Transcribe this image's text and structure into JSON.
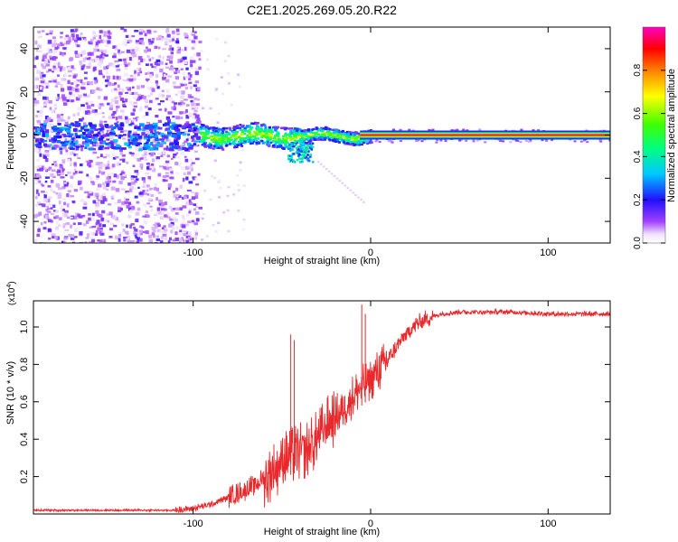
{
  "title": "C2E1.2025.269.05.20.R22",
  "chart_data": [
    {
      "type": "heatmap",
      "name": "spectrogram",
      "xlabel": "Height of straight line (km)",
      "ylabel": "Frequency (Hz)",
      "xlim": [
        -190,
        135
      ],
      "ylim": [
        -50,
        50
      ],
      "xticks": [
        -100,
        0,
        100
      ],
      "yticks": [
        -40,
        -20,
        0,
        20,
        40
      ],
      "x_tick_labels": [
        "-100",
        "0",
        "100"
      ],
      "y_tick_labels": [
        "-40",
        "-20",
        "0",
        "20",
        "40"
      ],
      "noise_region_x": [
        -190,
        -97
      ],
      "central_line_hz": 0,
      "colorbar": {
        "label": "Normalized spectral amplitude",
        "range": [
          0,
          1
        ],
        "ticks": [
          0.0,
          0.2,
          0.4,
          0.6,
          0.8
        ],
        "tick_labels": [
          "0.0",
          "0.2",
          "0.4",
          "0.6",
          "0.8"
        ],
        "colors": [
          "#ffffff",
          "#7f00ff",
          "#0000ff",
          "#00ffff",
          "#00ff00",
          "#ffff00",
          "#ff0000",
          "#ff00ff"
        ]
      }
    },
    {
      "type": "line",
      "name": "snr",
      "xlabel": "Height of straight line (km)",
      "ylabel": "SNR (10 * v/v)",
      "scale_note": "(x10",
      "scale_exp": "4",
      "scale_close": ")",
      "xlim": [
        -190,
        135
      ],
      "ylim": [
        0,
        1.14
      ],
      "xticks": [
        -100,
        0,
        100
      ],
      "yticks": [
        0.2,
        0.4,
        0.6,
        0.8,
        1.0
      ],
      "x_tick_labels": [
        "-100",
        "0",
        "100"
      ],
      "y_tick_labels": [
        "0.2",
        "0.4",
        "0.6",
        "0.8",
        "1.0"
      ],
      "color": "#e8282a",
      "series": [
        {
          "name": "SNR",
          "x": [
            -190,
            -160,
            -130,
            -110,
            -100,
            -90,
            -80,
            -70,
            -60,
            -55,
            -50,
            -45,
            -40,
            -35,
            -30,
            -25,
            -20,
            -15,
            -10,
            -5,
            0,
            5,
            10,
            15,
            20,
            25,
            30,
            40,
            50,
            60,
            80,
            100,
            120,
            135
          ],
          "y": [
            0.02,
            0.02,
            0.02,
            0.02,
            0.03,
            0.05,
            0.09,
            0.13,
            0.19,
            0.23,
            0.28,
            0.31,
            0.33,
            0.35,
            0.4,
            0.47,
            0.52,
            0.57,
            0.63,
            0.68,
            0.72,
            0.77,
            0.83,
            0.9,
            0.96,
            1.01,
            1.04,
            1.07,
            1.08,
            1.08,
            1.08,
            1.07,
            1.07,
            1.07
          ],
          "spikes": [
            {
              "x": -45,
              "y": 0.96
            },
            {
              "x": -43,
              "y": 0.93
            },
            {
              "x": -5,
              "y": 1.12
            },
            {
              "x": -3,
              "y": 1.07
            }
          ]
        }
      ]
    }
  ]
}
